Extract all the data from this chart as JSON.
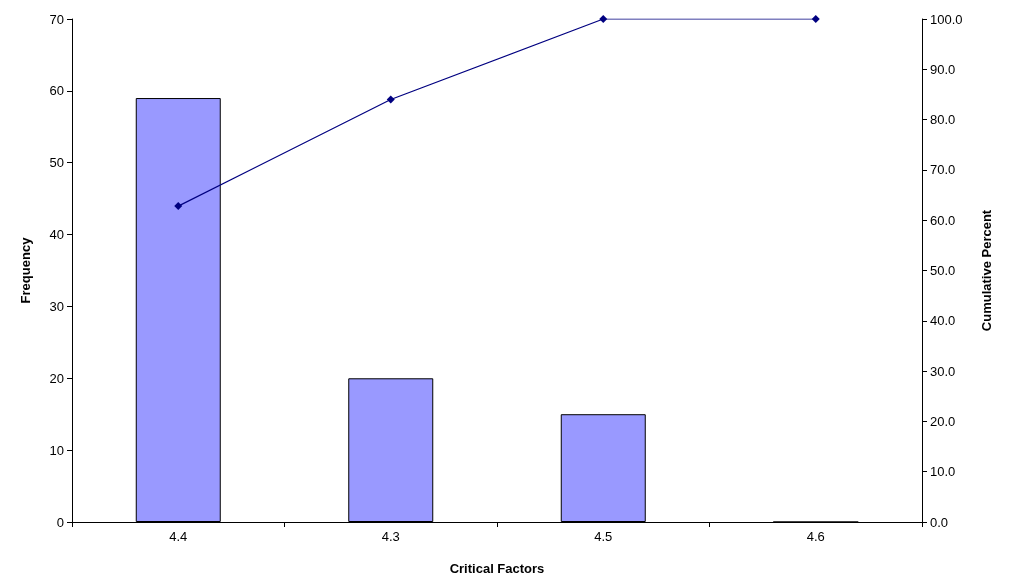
{
  "chart_data": {
    "type": "bar",
    "xlabel": "Critical Factors",
    "ylabel": "Frequency",
    "y2label": "Cumulative Percent",
    "categories": [
      "4.4",
      "4.3",
      "4.5",
      "4.6"
    ],
    "series": [
      {
        "color": "#9999ff",
        "values": [
          59,
          20,
          15,
          0
        ]
      },
      {
        "type": "line",
        "axis": "y2",
        "color": "#000080",
        "marker": "diamond",
        "values": [
          62.8,
          84.0,
          100,
          100
        ]
      }
    ],
    "ylim": [
      0,
      70
    ],
    "yticks": [
      0,
      10,
      20,
      30,
      40,
      50,
      60,
      70
    ],
    "y2lim": [
      0,
      100
    ],
    "y2ticks": [
      {
        "value": 0,
        "label": "0.0"
      },
      {
        "value": 10,
        "label": "10.0"
      },
      {
        "value": 20,
        "label": "20.0"
      },
      {
        "value": 30,
        "label": "30.0"
      },
      {
        "value": 40,
        "label": "40.0"
      },
      {
        "value": 50,
        "label": "50.0"
      },
      {
        "value": 60,
        "label": "60.0"
      },
      {
        "value": 70,
        "label": "70.0"
      },
      {
        "value": 80,
        "label": "80.0"
      },
      {
        "value": 90,
        "label": "90.0"
      },
      {
        "value": 100,
        "label": "100.0"
      }
    ],
    "grid": false
  }
}
